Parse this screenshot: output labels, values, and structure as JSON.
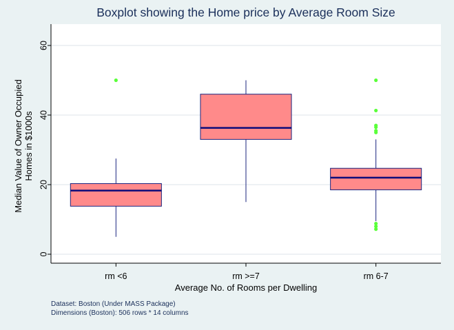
{
  "chart_data": {
    "type": "boxplot",
    "title": "Boxplot showing the Home price by Average Room Size",
    "xlabel": "Average No. of Rooms per Dwelling",
    "ylabel_lines": [
      "Median Value of Owner Occupied",
      "Homes in $1000s"
    ],
    "ylim": [
      0,
      60
    ],
    "yticks": [
      0,
      20,
      40,
      60
    ],
    "grid": true,
    "categories": [
      "rm <6",
      "rm >=7",
      "rm 6-7"
    ],
    "boxes": [
      {
        "category": "rm <6",
        "whisker_low": 5,
        "q1": 13.8,
        "median": 18.3,
        "q3": 20.3,
        "whisker_high": 27.5,
        "outliers": [
          50
        ]
      },
      {
        "category": "rm >=7",
        "whisker_low": 15,
        "q1": 33,
        "median": 36.3,
        "q3": 46,
        "whisker_high": 50,
        "outliers": []
      },
      {
        "category": "rm 6-7",
        "whisker_low": 9.5,
        "q1": 18.5,
        "median": 22,
        "q3": 24.7,
        "whisker_high": 33,
        "outliers": [
          7.2,
          8,
          8.8,
          35,
          35.5,
          36.5,
          37,
          41.3,
          50
        ]
      }
    ],
    "colors": {
      "box_fill": "#ff8a8a",
      "box_stroke": "#1a237e",
      "median": "#0b0b7a",
      "outlier": "#5aff3a",
      "grid": "#dde3ea",
      "plot_bg": "#ffffff",
      "page_bg": "#eaf2f3",
      "title": "#1a2f5a"
    }
  },
  "notes": [
    "Dataset: Boston (Under MASS Package)",
    "Dimensions (Boston): 506 rows * 14 columns"
  ]
}
